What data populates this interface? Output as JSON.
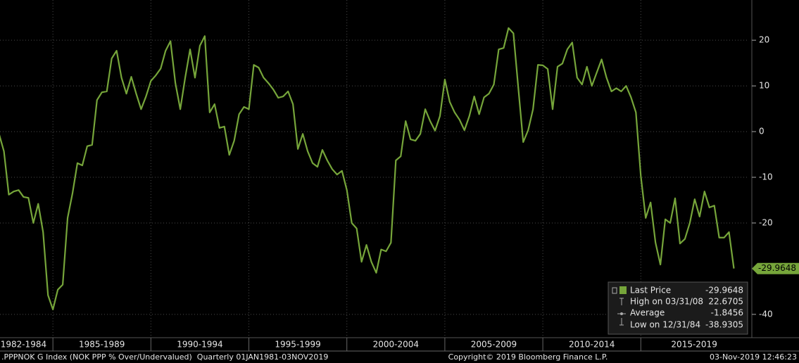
{
  "chart_data": {
    "type": "line",
    "title": ".PPPNOK G Index (NOK PPP % Over/Undervalued)  Quarterly 01JAN1981-03NOV2019",
    "copyright": "Copyright© 2019 Bloomberg Finance L.P.",
    "timestamp": "03-Nov-2019 12:46:23",
    "x": [
      1982.25,
      1982.5,
      1982.75,
      1983,
      1983.25,
      1983.5,
      1983.75,
      1984,
      1984.25,
      1984.5,
      1984.75,
      1985,
      1985.25,
      1985.5,
      1985.75,
      1986,
      1986.25,
      1986.5,
      1986.75,
      1987,
      1987.25,
      1987.5,
      1987.75,
      1988,
      1988.25,
      1988.5,
      1988.75,
      1989,
      1989.25,
      1989.5,
      1989.75,
      1990,
      1990.25,
      1990.5,
      1990.75,
      1991,
      1991.25,
      1991.5,
      1991.75,
      1992,
      1992.25,
      1992.5,
      1992.75,
      1993,
      1993.25,
      1993.5,
      1993.75,
      1994,
      1994.25,
      1994.5,
      1994.75,
      1995,
      1995.25,
      1995.5,
      1995.75,
      1996,
      1996.25,
      1996.5,
      1996.75,
      1997,
      1997.25,
      1997.5,
      1997.75,
      1998,
      1998.25,
      1998.5,
      1998.75,
      1999,
      1999.25,
      1999.5,
      1999.75,
      2000,
      2000.25,
      2000.5,
      2000.75,
      2001,
      2001.25,
      2001.5,
      2001.75,
      2002,
      2002.25,
      2002.5,
      2002.75,
      2003,
      2003.25,
      2003.5,
      2003.75,
      2004,
      2004.25,
      2004.5,
      2004.75,
      2005,
      2005.25,
      2005.5,
      2005.75,
      2006,
      2006.25,
      2006.5,
      2006.75,
      2007,
      2007.25,
      2007.5,
      2007.75,
      2008,
      2008.25,
      2008.5,
      2008.75,
      2009,
      2009.25,
      2009.5,
      2009.75,
      2010,
      2010.25,
      2010.5,
      2010.75,
      2011,
      2011.25,
      2011.5,
      2011.75,
      2012,
      2012.25,
      2012.5,
      2012.75,
      2013,
      2013.25,
      2013.5,
      2013.75,
      2014,
      2014.25,
      2014.5,
      2014.75,
      2015,
      2015.25,
      2015.5,
      2015.75,
      2016,
      2016.25,
      2016.5,
      2016.75,
      2017,
      2017.25,
      2017.5,
      2017.75,
      2018,
      2018.25,
      2018.5,
      2018.75,
      2019,
      2019.25,
      2019.5,
      2019.75
    ],
    "series": [
      {
        "name": "Last Price",
        "color": "#76a53a",
        "values": [
          -0.5,
          -4.3,
          -13.8,
          -13.1,
          -12.8,
          -14.3,
          -14.5,
          -20,
          -15.8,
          -22,
          -35.8,
          -38.9305,
          -34.6,
          -33.5,
          -18.9,
          -13.5,
          -6.9,
          -7.4,
          -3.2,
          -2.9,
          6.9,
          8.6,
          8.8,
          16,
          17.7,
          11.8,
          8.3,
          12,
          8.3,
          4.9,
          7.7,
          11.1,
          12.3,
          13.8,
          17.7,
          19.8,
          10.6,
          4.9,
          11.8,
          18,
          11.8,
          18.8,
          20.9,
          4.2,
          6,
          0.8,
          1.1,
          -5.1,
          -2,
          3.8,
          5.4,
          4.9,
          14.6,
          14,
          11.8,
          10.6,
          9.2,
          7.4,
          7.7,
          8.8,
          6,
          -3.8,
          -0.5,
          -4.3,
          -6.9,
          -7.7,
          -4,
          -6.3,
          -8.2,
          -9.4,
          -8.6,
          -12.8,
          -20,
          -21.2,
          -28.5,
          -24.8,
          -28.5,
          -30.9,
          -25.8,
          -26.2,
          -24.3,
          -6.3,
          -5.4,
          2.3,
          -1.7,
          -2,
          -0.5,
          4.9,
          2.3,
          0.2,
          3.4,
          11.4,
          6.5,
          4.2,
          2.6,
          0.3,
          3.4,
          7.7,
          3.8,
          7.5,
          8.3,
          10.3,
          18,
          18.3,
          22.6705,
          21.5,
          9.5,
          -2.3,
          0.3,
          4.9,
          14.6,
          14.5,
          13.7,
          4.9,
          14.2,
          14.9,
          18,
          19.5,
          11.8,
          10.3,
          14.2,
          10,
          12.9,
          15.8,
          11.8,
          8.8,
          9.5,
          8.8,
          10,
          7.5,
          4.2,
          -9.7,
          -18.9,
          -15.5,
          -24.3,
          -29.1,
          -19.2,
          -20,
          -14.6,
          -24.5,
          -23.5,
          -20,
          -14.8,
          -18.6,
          -13.1,
          -16.6,
          -16.2,
          -23.2,
          -23.2,
          -22,
          -29.9648
        ]
      }
    ],
    "xlim": [
      1982.3,
      2020.45
    ],
    "ylim": [
      -45.1,
      28.8
    ],
    "xticks": [
      {
        "value": 1982,
        "label": "1982-1984"
      },
      {
        "value": 1985,
        "label": "1985-1989"
      },
      {
        "value": 1990,
        "label": "1990-1994"
      },
      {
        "value": 1995,
        "label": "1995-1999"
      },
      {
        "value": 2000,
        "label": "2000-2004"
      },
      {
        "value": 2005,
        "label": "2005-2009"
      },
      {
        "value": 2010,
        "label": "2010-2014"
      },
      {
        "value": 2015,
        "label": "2015-2019"
      }
    ],
    "yticks": [
      20,
      10,
      0,
      -10,
      -20,
      -40
    ],
    "grid": true,
    "stats": [
      {
        "label": "High on 03/31/08",
        "value": 22.6705
      },
      {
        "label": "Average",
        "value": -1.8456
      },
      {
        "label": "Low on 12/31/84",
        "value": -38.9305
      }
    ]
  }
}
